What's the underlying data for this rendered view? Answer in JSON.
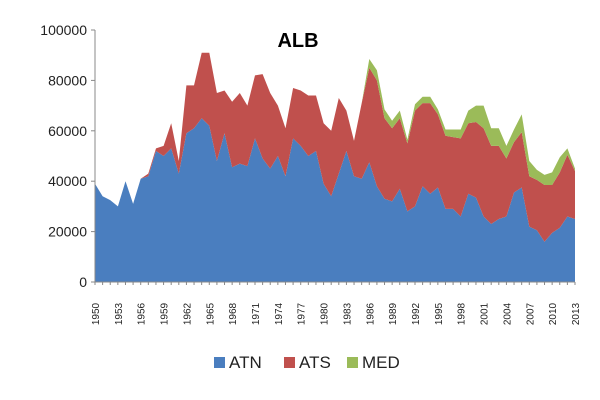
{
  "chart_data": {
    "type": "area",
    "stacked": true,
    "title": "ALB",
    "xlabel": "",
    "ylabel": "",
    "ylim": [
      0,
      100000
    ],
    "yticks": [
      0,
      20000,
      40000,
      60000,
      80000,
      100000
    ],
    "ytick_labels": [
      "0",
      "20000",
      "40000",
      "60000",
      "80000",
      "100000"
    ],
    "x": [
      1950,
      1951,
      1952,
      1953,
      1954,
      1955,
      1956,
      1957,
      1958,
      1959,
      1960,
      1961,
      1962,
      1963,
      1964,
      1965,
      1966,
      1967,
      1968,
      1969,
      1970,
      1971,
      1972,
      1973,
      1974,
      1975,
      1976,
      1977,
      1978,
      1979,
      1980,
      1981,
      1982,
      1983,
      1984,
      1985,
      1986,
      1987,
      1988,
      1989,
      1990,
      1991,
      1992,
      1993,
      1994,
      1995,
      1996,
      1997,
      1998,
      1999,
      2000,
      2001,
      2002,
      2003,
      2004,
      2005,
      2006,
      2007,
      2008,
      2009,
      2010,
      2011,
      2012,
      2013
    ],
    "xtick_labels": [
      "1950",
      "1953",
      "1956",
      "1959",
      "1962",
      "1965",
      "1968",
      "1971",
      "1974",
      "1977",
      "1980",
      "1983",
      "1986",
      "1989",
      "1992",
      "1995",
      "1998",
      "2001",
      "2004",
      "2007",
      "2010",
      "2013"
    ],
    "grid": false,
    "legend_position": "bottom",
    "colors": {
      "ATN": "#4a7ebf",
      "ATS": "#c0504d",
      "MED": "#9bbb59"
    },
    "series": [
      {
        "name": "ATN",
        "values": [
          39000,
          34000,
          32500,
          30000,
          40000,
          31000,
          41000,
          42000,
          52000,
          50000,
          53000,
          43000,
          59000,
          61000,
          65000,
          62000,
          48000,
          59000,
          45500,
          47000,
          46000,
          57000,
          49000,
          45000,
          50000,
          42000,
          57000,
          54000,
          50000,
          52000,
          39000,
          34000,
          43000,
          52000,
          42000,
          41000,
          47500,
          38000,
          33000,
          32000,
          37000,
          28000,
          30000,
          38000,
          35000,
          37500,
          29000,
          29000,
          26000,
          35000,
          33500,
          26000,
          23000,
          25000,
          26000,
          35500,
          37500,
          22000,
          20500,
          16000,
          19500,
          21500,
          26000,
          25000
        ]
      },
      {
        "name": "ATS",
        "values": [
          0,
          0,
          0,
          0,
          0,
          0,
          0,
          1000,
          1000,
          4000,
          10000,
          5000,
          19000,
          17000,
          26000,
          29000,
          27000,
          17000,
          26000,
          28000,
          24000,
          25000,
          33500,
          30000,
          20000,
          19000,
          20000,
          22000,
          24000,
          22000,
          24000,
          26000,
          30000,
          16000,
          14000,
          30000,
          37500,
          42000,
          32000,
          29000,
          28000,
          27000,
          38000,
          33000,
          36000,
          29000,
          29000,
          28500,
          31000,
          28000,
          30000,
          35000,
          31000,
          29000,
          23000,
          20000,
          22000,
          20000,
          20000,
          22500,
          19000,
          22000,
          24500,
          19000
        ]
      },
      {
        "name": "MED",
        "values": [
          0,
          0,
          0,
          0,
          0,
          0,
          0,
          0,
          0,
          0,
          0,
          0,
          0,
          0,
          0,
          0,
          0,
          0,
          0,
          0,
          0,
          0,
          0,
          0,
          0,
          0,
          0,
          0,
          0,
          0,
          0,
          0,
          0,
          0,
          0,
          0,
          3500,
          4000,
          3500,
          3000,
          3000,
          1500,
          2500,
          2500,
          2500,
          2000,
          2500,
          3000,
          3500,
          5000,
          6500,
          9000,
          7000,
          7000,
          5000,
          5000,
          7000,
          6000,
          4000,
          4000,
          5000,
          6000,
          2500,
          1000
        ]
      }
    ]
  }
}
